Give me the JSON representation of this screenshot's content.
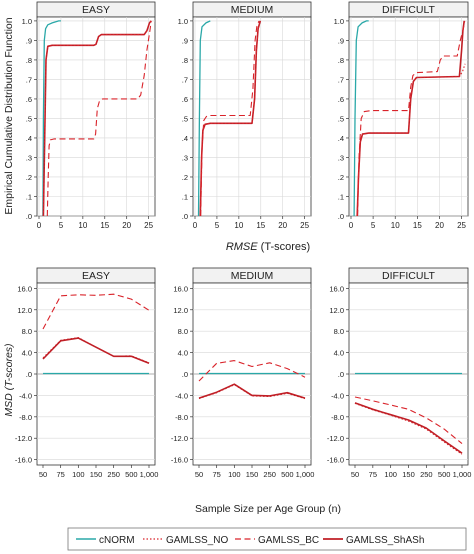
{
  "figure": {
    "top_ylabel": "Empirical Cumulative Distribution Function",
    "top_xlabel_italic": "RMSE",
    "top_xlabel_rest": " (T-scores)",
    "bottom_ylabel": "MSD (T-scores)",
    "bottom_xlabel": "Sample Size per Age Group (n)"
  },
  "colors": {
    "cNORM": "#2aa8a8",
    "GAMLSS_NO": "#d9232a",
    "GAMLSS_BC": "#d9232a",
    "GAMLSS_ShASh": "#c01f26",
    "grid": "#d8d8d8",
    "frame": "#333333"
  },
  "legend": [
    {
      "label": "cNORM",
      "series": "cNORM",
      "style": "solid"
    },
    {
      "label": "GAMLSS_NO",
      "series": "GAMLSS_NO",
      "style": "dotted"
    },
    {
      "label": "GAMLSS_BC",
      "series": "GAMLSS_BC",
      "style": "dashed"
    },
    {
      "label": "GAMLSS_ShASh",
      "series": "GAMLSS_ShASh",
      "style": "solid-thick"
    }
  ],
  "chart_data": [
    {
      "type": "line",
      "panel": "top",
      "title": "EASY",
      "xlim": [
        0,
        26
      ],
      "ylim": [
        0,
        1.02
      ],
      "xticks": [
        0,
        5,
        10,
        15,
        20,
        25
      ],
      "yticks": [
        0,
        0.1,
        0.2,
        0.3,
        0.4,
        0.5,
        0.6,
        0.7,
        0.8,
        0.9,
        1.0
      ],
      "ytick_labels": [
        ".0",
        ".1",
        ".2",
        ".3",
        ".4",
        ".5",
        ".6",
        ".7",
        ".8",
        ".9",
        "1.0"
      ],
      "series": [
        {
          "name": "cNORM",
          "points": [
            [
              0.9,
              0.0
            ],
            [
              1.0,
              0.5
            ],
            [
              1.2,
              0.9
            ],
            [
              1.5,
              0.96
            ],
            [
              2.0,
              0.98
            ],
            [
              3.0,
              0.99
            ],
            [
              4.5,
              1.0
            ],
            [
              5.0,
              1.0
            ]
          ]
        },
        {
          "name": "GAMLSS_ShASh",
          "points": [
            [
              1.0,
              0.0
            ],
            [
              1.3,
              0.4
            ],
            [
              1.6,
              0.8
            ],
            [
              2.0,
              0.87
            ],
            [
              3.0,
              0.875
            ],
            [
              12.5,
              0.875
            ],
            [
              13.0,
              0.88
            ],
            [
              13.6,
              0.92
            ],
            [
              14.2,
              0.93
            ],
            [
              24.0,
              0.93
            ],
            [
              24.6,
              0.95
            ],
            [
              25.2,
              0.99
            ],
            [
              25.6,
              1.0
            ]
          ]
        },
        {
          "name": "GAMLSS_NO",
          "points": [
            [
              1.0,
              0.0
            ],
            [
              1.3,
              0.4
            ],
            [
              1.6,
              0.8
            ],
            [
              2.0,
              0.87
            ],
            [
              3.0,
              0.875
            ],
            [
              12.5,
              0.875
            ],
            [
              13.0,
              0.88
            ],
            [
              13.6,
              0.92
            ],
            [
              14.2,
              0.93
            ],
            [
              24.0,
              0.93
            ],
            [
              24.6,
              0.95
            ],
            [
              25.2,
              0.99
            ],
            [
              25.6,
              1.0
            ]
          ]
        },
        {
          "name": "GAMLSS_BC",
          "points": [
            [
              1.9,
              0.0
            ],
            [
              2.1,
              0.2
            ],
            [
              2.3,
              0.36
            ],
            [
              2.6,
              0.39
            ],
            [
              3.5,
              0.395
            ],
            [
              12.5,
              0.395
            ],
            [
              12.9,
              0.42
            ],
            [
              13.3,
              0.55
            ],
            [
              13.8,
              0.59
            ],
            [
              14.5,
              0.6
            ],
            [
              22.5,
              0.6
            ],
            [
              23.2,
              0.62
            ],
            [
              24.0,
              0.72
            ],
            [
              24.6,
              0.85
            ],
            [
              25.3,
              0.95
            ],
            [
              25.6,
              1.0
            ]
          ]
        }
      ]
    },
    {
      "type": "line",
      "panel": "top",
      "title": "MEDIUM",
      "xlim": [
        0,
        26
      ],
      "ylim": [
        0,
        1.02
      ],
      "xticks": [
        0,
        5,
        10,
        15,
        20,
        25
      ],
      "yticks": [
        0,
        0.1,
        0.2,
        0.3,
        0.4,
        0.5,
        0.6,
        0.7,
        0.8,
        0.9,
        1.0
      ],
      "ytick_labels": [
        ".0",
        ".1",
        ".2",
        ".3",
        ".4",
        ".5",
        ".6",
        ".7",
        ".8",
        ".9",
        "1.0"
      ],
      "series": [
        {
          "name": "cNORM",
          "points": [
            [
              0.8,
              0.0
            ],
            [
              1.0,
              0.5
            ],
            [
              1.2,
              0.9
            ],
            [
              1.6,
              0.97
            ],
            [
              2.5,
              0.99
            ],
            [
              3.5,
              1.0
            ]
          ]
        },
        {
          "name": "GAMLSS_ShASh",
          "points": [
            [
              1.2,
              0.0
            ],
            [
              1.5,
              0.3
            ],
            [
              1.8,
              0.44
            ],
            [
              2.3,
              0.47
            ],
            [
              3.5,
              0.475
            ],
            [
              13.0,
              0.475
            ],
            [
              13.6,
              0.6
            ],
            [
              14.0,
              0.85
            ],
            [
              14.4,
              0.96
            ],
            [
              14.9,
              1.0
            ]
          ]
        },
        {
          "name": "GAMLSS_NO",
          "points": [
            [
              1.2,
              0.0
            ],
            [
              1.5,
              0.3
            ],
            [
              1.8,
              0.44
            ],
            [
              2.3,
              0.47
            ],
            [
              3.5,
              0.475
            ],
            [
              13.0,
              0.475
            ],
            [
              13.6,
              0.6
            ],
            [
              14.0,
              0.85
            ],
            [
              14.4,
              0.96
            ],
            [
              14.9,
              1.0
            ]
          ]
        },
        {
          "name": "GAMLSS_BC",
          "points": [
            [
              1.3,
              0.0
            ],
            [
              1.6,
              0.35
            ],
            [
              2.0,
              0.49
            ],
            [
              2.6,
              0.51
            ],
            [
              3.5,
              0.515
            ],
            [
              12.6,
              0.515
            ],
            [
              13.2,
              0.65
            ],
            [
              13.7,
              0.9
            ],
            [
              14.1,
              0.97
            ],
            [
              14.6,
              1.0
            ]
          ]
        }
      ]
    },
    {
      "type": "line",
      "panel": "top",
      "title": "DIFFICULT",
      "xlim": [
        0,
        26
      ],
      "ylim": [
        0,
        1.02
      ],
      "xticks": [
        0,
        5,
        10,
        15,
        20,
        25
      ],
      "yticks": [
        0,
        0.1,
        0.2,
        0.3,
        0.4,
        0.5,
        0.6,
        0.7,
        0.8,
        0.9,
        1.0
      ],
      "ytick_labels": [
        ".0",
        ".1",
        ".2",
        ".3",
        ".4",
        ".5",
        ".6",
        ".7",
        ".8",
        ".9",
        "1.0"
      ],
      "series": [
        {
          "name": "cNORM",
          "points": [
            [
              0.7,
              0.0
            ],
            [
              0.9,
              0.5
            ],
            [
              1.2,
              0.9
            ],
            [
              1.6,
              0.97
            ],
            [
              2.5,
              0.99
            ],
            [
              3.5,
              1.0
            ],
            [
              4.0,
              1.0
            ]
          ]
        },
        {
          "name": "GAMLSS_ShASh",
          "points": [
            [
              1.4,
              0.0
            ],
            [
              1.7,
              0.2
            ],
            [
              2.1,
              0.38
            ],
            [
              2.6,
              0.42
            ],
            [
              4.0,
              0.425
            ],
            [
              13.0,
              0.425
            ],
            [
              13.5,
              0.6
            ],
            [
              14.1,
              0.69
            ],
            [
              14.8,
              0.71
            ],
            [
              24.5,
              0.715
            ],
            [
              25.0,
              0.85
            ],
            [
              25.3,
              0.95
            ],
            [
              25.6,
              1.0
            ]
          ]
        },
        {
          "name": "GAMLSS_NO",
          "points": [
            [
              1.4,
              0.0
            ],
            [
              1.7,
              0.2
            ],
            [
              2.1,
              0.38
            ],
            [
              2.6,
              0.42
            ],
            [
              4.0,
              0.425
            ],
            [
              13.0,
              0.425
            ],
            [
              13.5,
              0.6
            ],
            [
              14.1,
              0.69
            ],
            [
              14.8,
              0.71
            ],
            [
              24.5,
              0.715
            ],
            [
              25.2,
              0.74
            ],
            [
              25.8,
              0.78
            ]
          ]
        },
        {
          "name": "GAMLSS_BC",
          "points": [
            [
              1.5,
              0.0
            ],
            [
              1.8,
              0.3
            ],
            [
              2.3,
              0.5
            ],
            [
              3.0,
              0.535
            ],
            [
              4.5,
              0.54
            ],
            [
              13.0,
              0.54
            ],
            [
              13.5,
              0.66
            ],
            [
              14.0,
              0.72
            ],
            [
              14.8,
              0.735
            ],
            [
              19.5,
              0.74
            ],
            [
              20.2,
              0.8
            ],
            [
              20.8,
              0.82
            ],
            [
              24.0,
              0.82
            ],
            [
              24.7,
              0.9
            ],
            [
              25.4,
              0.96
            ],
            [
              25.7,
              1.0
            ]
          ]
        }
      ]
    },
    {
      "type": "line",
      "panel": "bottom",
      "title": "EASY",
      "categories": [
        "50",
        "75",
        "100",
        "150",
        "250",
        "500",
        "1,000"
      ],
      "ylim": [
        -17,
        17
      ],
      "yticks": [
        -16,
        -12,
        -8,
        -4,
        0,
        4,
        8,
        12,
        16
      ],
      "ytick_labels": [
        "-16.0",
        "-12.0",
        "-8.0",
        "-4.0",
        ".0",
        "4.0",
        "8.0",
        "12.0",
        "16.0"
      ],
      "series": [
        {
          "name": "cNORM",
          "values": [
            0.1,
            0.1,
            0.1,
            0.1,
            0.1,
            0.1,
            0.1
          ]
        },
        {
          "name": "GAMLSS_NO",
          "values": [
            3.0,
            6.3,
            6.8,
            5.0,
            3.3,
            3.4,
            2.1
          ]
        },
        {
          "name": "GAMLSS_BC",
          "values": [
            8.4,
            14.6,
            14.8,
            14.7,
            14.9,
            14.0,
            11.9
          ]
        },
        {
          "name": "GAMLSS_ShASh",
          "values": [
            2.8,
            6.2,
            6.7,
            5.0,
            3.3,
            3.3,
            2.0
          ]
        }
      ]
    },
    {
      "type": "line",
      "panel": "bottom",
      "title": "MEDIUM",
      "categories": [
        "50",
        "75",
        "100",
        "150",
        "250",
        "500",
        "1,000"
      ],
      "ylim": [
        -17,
        17
      ],
      "yticks": [
        -16,
        -12,
        -8,
        -4,
        0,
        4,
        8,
        12,
        16
      ],
      "ytick_labels": [
        "-16.0",
        "-12.0",
        "-8.0",
        "-4.0",
        ".0",
        "4.0",
        "8.0",
        "12.0",
        "16.0"
      ],
      "series": [
        {
          "name": "cNORM",
          "values": [
            0.1,
            0.1,
            0.1,
            0.1,
            0.1,
            0.1,
            0.1
          ]
        },
        {
          "name": "GAMLSS_NO",
          "values": [
            -4.6,
            -3.5,
            -2.0,
            -4.1,
            -4.2,
            -3.6,
            -4.6
          ]
        },
        {
          "name": "GAMLSS_BC",
          "values": [
            -1.3,
            2.0,
            2.5,
            1.4,
            2.1,
            1.0,
            -0.6
          ]
        },
        {
          "name": "GAMLSS_ShASh",
          "values": [
            -4.5,
            -3.4,
            -1.9,
            -4.0,
            -4.1,
            -3.5,
            -4.5
          ]
        }
      ]
    },
    {
      "type": "line",
      "panel": "bottom",
      "title": "DIFFICULT",
      "categories": [
        "50",
        "75",
        "100",
        "150",
        "250",
        "500",
        "1,000"
      ],
      "ylim": [
        -17,
        17
      ],
      "yticks": [
        -16,
        -12,
        -8,
        -4,
        0,
        4,
        8,
        12,
        16
      ],
      "ytick_labels": [
        "-16.0",
        "-12.0",
        "-8.0",
        "-4.0",
        ".0",
        "4.0",
        "8.0",
        "12.0",
        "16.0"
      ],
      "series": [
        {
          "name": "cNORM",
          "values": [
            0.1,
            0.1,
            0.1,
            0.1,
            0.1,
            0.1,
            0.1
          ]
        },
        {
          "name": "GAMLSS_NO",
          "values": [
            -5.5,
            -6.7,
            -7.7,
            -8.8,
            -10.3,
            -12.7,
            -15.0
          ]
        },
        {
          "name": "GAMLSS_BC",
          "values": [
            -4.3,
            -5.0,
            -5.8,
            -6.6,
            -8.2,
            -10.3,
            -13.0
          ]
        },
        {
          "name": "GAMLSS_ShASh",
          "values": [
            -5.4,
            -6.6,
            -7.6,
            -8.6,
            -10.1,
            -12.5,
            -14.8
          ]
        }
      ]
    }
  ]
}
